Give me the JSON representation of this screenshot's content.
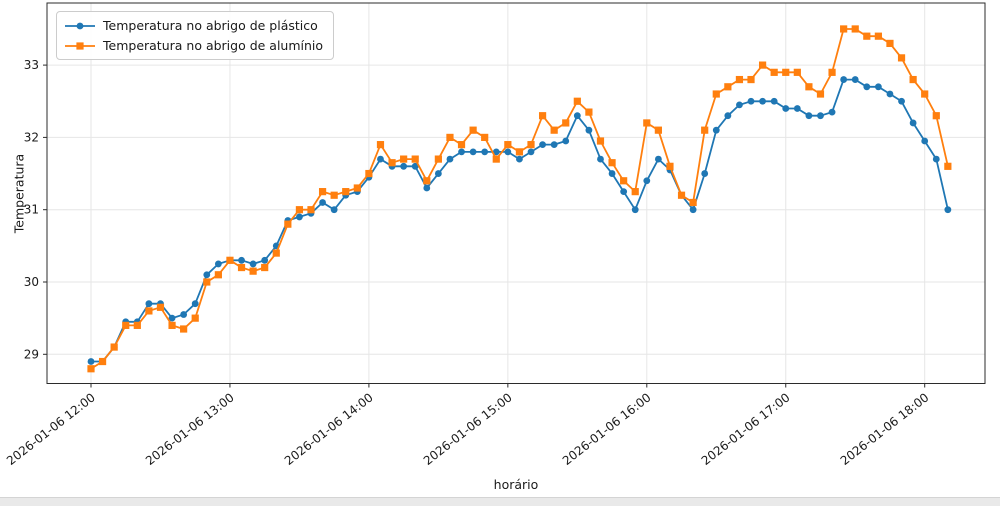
{
  "ui": {
    "background_color": "#ffffff",
    "grid_color": "#e6e6e6",
    "spine_color": "#2b2b2b",
    "tick_text_color": "#1a1a1a",
    "bottom_strip_color": "#e9e9e9"
  },
  "chart_data": {
    "type": "line",
    "title": "",
    "xlabel": "horário",
    "ylabel": "Temperatura",
    "grid": true,
    "legend_position": "upper left",
    "ylim": [
      28.6,
      33.85
    ],
    "yticks": [
      29,
      30,
      31,
      32,
      33
    ],
    "xticks": [
      "2026-01-06 12:00",
      "2026-01-06 13:00",
      "2026-01-06 14:00",
      "2026-01-06 15:00",
      "2026-01-06 16:00",
      "2026-01-06 17:00",
      "2026-01-06 18:00"
    ],
    "xtick_interval_points": 12,
    "x": [
      "12:00",
      "12:05",
      "12:10",
      "12:15",
      "12:20",
      "12:25",
      "12:30",
      "12:35",
      "12:40",
      "12:45",
      "12:50",
      "12:55",
      "13:00",
      "13:05",
      "13:10",
      "13:15",
      "13:20",
      "13:25",
      "13:30",
      "13:35",
      "13:40",
      "13:45",
      "13:50",
      "13:55",
      "14:00",
      "14:05",
      "14:10",
      "14:15",
      "14:20",
      "14:25",
      "14:30",
      "14:35",
      "14:40",
      "14:45",
      "14:50",
      "14:55",
      "15:00",
      "15:05",
      "15:10",
      "15:15",
      "15:20",
      "15:25",
      "15:30",
      "15:35",
      "15:40",
      "15:45",
      "15:50",
      "15:55",
      "16:00",
      "16:05",
      "16:10",
      "16:15",
      "16:20",
      "16:25",
      "16:30",
      "16:35",
      "16:40",
      "16:45",
      "16:50",
      "16:55",
      "17:00",
      "17:05",
      "17:10",
      "17:15",
      "17:20",
      "17:25",
      "17:30",
      "17:35",
      "17:40",
      "17:45",
      "17:50",
      "17:55",
      "18:00",
      "18:05",
      "18:10"
    ],
    "series": [
      {
        "name": "Temperatura no abrigo de plástico",
        "color": "#1f77b4",
        "marker": "circle",
        "values": [
          28.9,
          28.9,
          29.1,
          29.45,
          29.45,
          29.7,
          29.7,
          29.5,
          29.55,
          29.7,
          30.1,
          30.25,
          30.3,
          30.3,
          30.25,
          30.3,
          30.5,
          30.85,
          30.9,
          30.95,
          31.1,
          31.0,
          31.2,
          31.25,
          31.45,
          31.7,
          31.6,
          31.6,
          31.6,
          31.3,
          31.5,
          31.7,
          31.8,
          31.8,
          31.8,
          31.8,
          31.8,
          31.7,
          31.8,
          31.9,
          31.9,
          31.95,
          32.3,
          32.1,
          31.7,
          31.5,
          31.25,
          31.0,
          31.4,
          31.7,
          31.55,
          31.2,
          31.0,
          31.5,
          32.1,
          32.3,
          32.45,
          32.5,
          32.5,
          32.5,
          32.4,
          32.4,
          32.3,
          32.3,
          32.35,
          32.8,
          32.8,
          32.7,
          32.7,
          32.6,
          32.5,
          32.2,
          31.95,
          31.7,
          31.0
        ]
      },
      {
        "name": "Temperatura no abrigo de alumínio",
        "color": "#ff7f0e",
        "marker": "square",
        "values": [
          28.8,
          28.9,
          29.1,
          29.4,
          29.4,
          29.6,
          29.65,
          29.4,
          29.35,
          29.5,
          30.0,
          30.1,
          30.3,
          30.2,
          30.15,
          30.2,
          30.4,
          30.8,
          31.0,
          31.0,
          31.25,
          31.2,
          31.25,
          31.3,
          31.5,
          31.9,
          31.65,
          31.7,
          31.7,
          31.4,
          31.7,
          32.0,
          31.9,
          32.1,
          32.0,
          31.7,
          31.9,
          31.8,
          31.9,
          32.3,
          32.1,
          32.2,
          32.5,
          32.35,
          31.95,
          31.65,
          31.4,
          31.25,
          32.2,
          32.1,
          31.6,
          31.2,
          31.1,
          32.1,
          32.6,
          32.7,
          32.8,
          32.8,
          33.0,
          32.9,
          32.9,
          32.9,
          32.7,
          32.6,
          32.9,
          33.5,
          33.5,
          33.4,
          33.4,
          33.3,
          33.1,
          32.8,
          32.6,
          32.3,
          31.6
        ]
      }
    ]
  }
}
